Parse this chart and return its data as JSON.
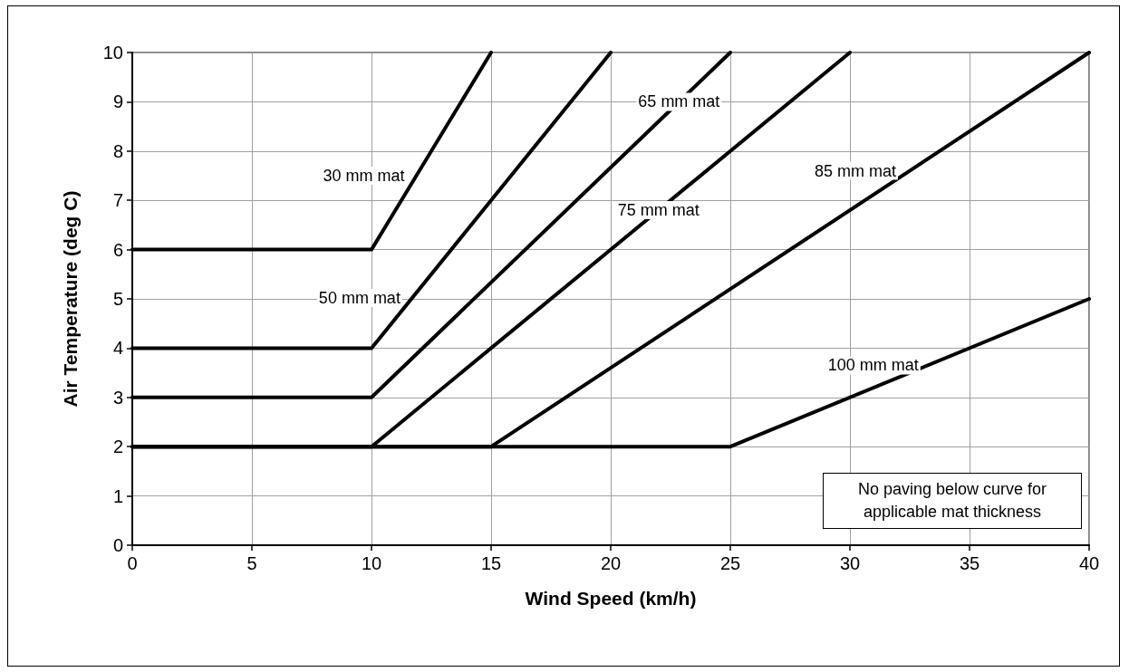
{
  "chart_data": {
    "type": "line",
    "xlabel": "Wind Speed (km/h)",
    "ylabel": "Air Temperature (deg C)",
    "xlim": [
      0,
      40
    ],
    "xticks": [
      0,
      5,
      10,
      15,
      20,
      25,
      30,
      35,
      40
    ],
    "ylim": [
      0,
      10
    ],
    "yticks": [
      0,
      1,
      2,
      3,
      4,
      5,
      6,
      7,
      8,
      9,
      10
    ],
    "grid": true,
    "marker": "none",
    "line_style": "solid",
    "annotations": [
      "No paving below curve for applicable mat thickness"
    ],
    "series": [
      {
        "name": "30 mm mat",
        "color": "#000000",
        "x": [
          0,
          10,
          15
        ],
        "values": [
          6,
          6,
          10
        ]
      },
      {
        "name": "50 mm mat",
        "color": "#000000",
        "x": [
          0,
          10,
          20
        ],
        "values": [
          4,
          4,
          10
        ]
      },
      {
        "name": "65 mm mat",
        "color": "#000000",
        "x": [
          0,
          10,
          25
        ],
        "values": [
          3,
          3,
          10
        ]
      },
      {
        "name": "75 mm mat",
        "color": "#000000",
        "x": [
          0,
          10,
          30
        ],
        "values": [
          2,
          2,
          10
        ]
      },
      {
        "name": "85 mm mat",
        "color": "#000000",
        "x": [
          0,
          15,
          40
        ],
        "values": [
          2,
          2,
          10
        ]
      },
      {
        "name": "100 mm mat",
        "color": "#000000",
        "x": [
          0,
          25,
          40
        ],
        "values": [
          2,
          2,
          5
        ]
      }
    ]
  }
}
